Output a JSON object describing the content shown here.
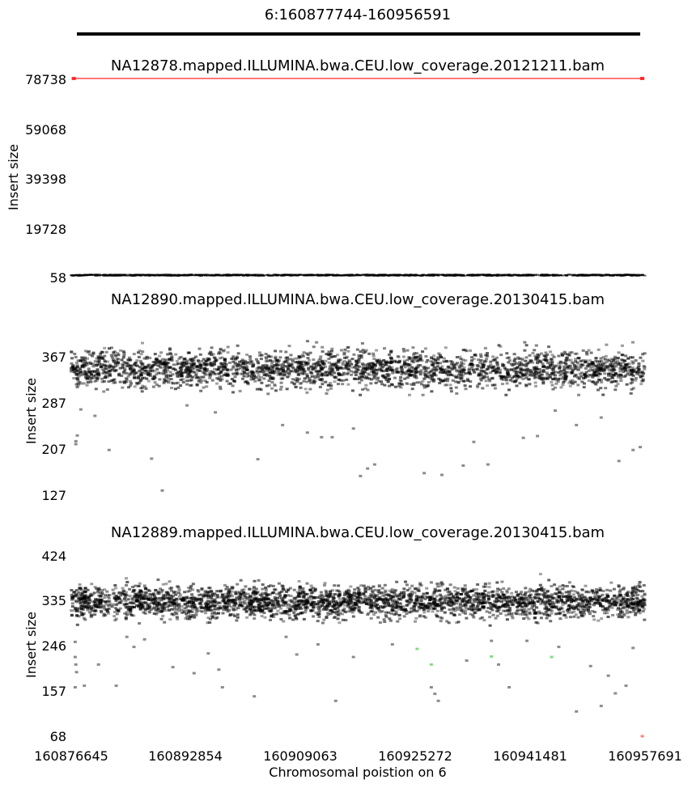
{
  "figure": {
    "region_title": "6:160877744-160956591",
    "xlabel": "Chromosomal poistion on 6",
    "xlim": [
      160876645,
      160957691
    ],
    "xticks": [
      "160876645",
      "160892854",
      "160909063",
      "160925272",
      "160941481",
      "160957691"
    ]
  },
  "chart_data": [
    {
      "type": "scatter",
      "title": "NA12878.mapped.ILLUMINA.bwa.CEU.low_coverage.20121211.bam",
      "ylabel": "Insert size",
      "ylim": [
        58,
        78738
      ],
      "yticks": [
        "78738",
        "59068",
        "39398",
        "19728",
        "58"
      ],
      "series": [
        {
          "name": "",
          "color": "#000000",
          "y_range": [
            100,
            600
          ],
          "x_range": [
            160876645,
            160957691
          ],
          "approx_count": 1200
        },
        {
          "name": "",
          "color": "#ff0000",
          "y": 78738,
          "x_range": [
            160877000,
            160957300
          ]
        }
      ]
    },
    {
      "type": "scatter",
      "title": "NA12890.mapped.ILLUMINA.bwa.CEU.low_coverage.20130415.bam",
      "ylabel": "Insert size",
      "ylim": [
        127,
        447
      ],
      "yticks": [
        "367",
        "287",
        "207",
        "127"
      ],
      "series": [
        {
          "name": "",
          "color": "#000000",
          "y_mean": 345,
          "y_spread": 25,
          "y_range": [
            300,
            440
          ],
          "approx_count": 2600
        },
        {
          "name": "",
          "color": "#000000",
          "outliers": [
            [
              160877300,
              220
            ],
            [
              160877300,
              215
            ],
            [
              160877500,
              230
            ],
            [
              160878000,
              275
            ],
            [
              160880000,
              264
            ],
            [
              160882000,
              205
            ],
            [
              160888000,
              190
            ],
            [
              160889500,
              135
            ],
            [
              160893000,
              282
            ],
            [
              160897000,
              270
            ],
            [
              160903000,
              189
            ],
            [
              160906500,
              248
            ],
            [
              160910000,
              235
            ],
            [
              160912000,
              227
            ],
            [
              160913500,
              227
            ],
            [
              160916500,
              242
            ],
            [
              160917500,
              160
            ],
            [
              160918500,
              173
            ],
            [
              160919500,
              180
            ],
            [
              160926500,
              165
            ],
            [
              160929000,
              162
            ],
            [
              160932000,
              178
            ],
            [
              160933500,
              219
            ],
            [
              160935500,
              180
            ],
            [
              160940500,
              226
            ],
            [
              160942500,
              229
            ],
            [
              160945000,
              273
            ],
            [
              160948000,
              248
            ],
            [
              160951500,
              261
            ],
            [
              160954000,
              186
            ],
            [
              160956000,
              205
            ],
            [
              160957000,
              210
            ]
          ]
        }
      ]
    },
    {
      "type": "scatter",
      "title": "NA12889.mapped.ILLUMINA.bwa.CEU.low_coverage.20130415.bam",
      "ylabel": "Insert size",
      "ylim": [
        68,
        424
      ],
      "yticks": [
        "424",
        "335",
        "246",
        "157",
        "68"
      ],
      "series": [
        {
          "name": "",
          "color": "#000000",
          "y_mean": 335,
          "y_spread": 25,
          "y_range": [
            275,
            424
          ],
          "approx_count": 3000
        },
        {
          "name": "",
          "color": "#000000",
          "outliers": [
            [
              160877200,
              255
            ],
            [
              160877200,
              225
            ],
            [
              160877300,
              210
            ],
            [
              160877400,
              195
            ],
            [
              160877200,
              165
            ],
            [
              160878500,
              168
            ],
            [
              160880500,
              210
            ],
            [
              160883000,
              168
            ],
            [
              160884500,
              265
            ],
            [
              160885500,
              245
            ],
            [
              160887000,
              260
            ],
            [
              160891000,
              205
            ],
            [
              160894000,
              193
            ],
            [
              160896000,
              232
            ],
            [
              160897500,
              200
            ],
            [
              160898000,
              165
            ],
            [
              160902500,
              147
            ],
            [
              160907000,
              265
            ],
            [
              160908500,
              230
            ],
            [
              160911500,
              250
            ],
            [
              160914000,
              138
            ],
            [
              160916500,
              225
            ],
            [
              160922000,
              250
            ],
            [
              160927500,
              165
            ],
            [
              160928000,
              152
            ],
            [
              160928500,
              138
            ],
            [
              160932500,
              218
            ],
            [
              160936000,
              257
            ],
            [
              160937000,
              210
            ],
            [
              160938500,
              165
            ],
            [
              160941000,
              257
            ],
            [
              160945500,
              245
            ],
            [
              160948000,
              117
            ],
            [
              160950000,
              207
            ],
            [
              160951500,
              128
            ],
            [
              160952500,
              188
            ],
            [
              160953500,
              153
            ],
            [
              160955000,
              168
            ],
            [
              160956000,
              243
            ]
          ]
        },
        {
          "name": "",
          "color": "#00c000",
          "points": [
            [
              160925500,
              241
            ],
            [
              160936000,
              226
            ],
            [
              160944500,
              225
            ],
            [
              160927500,
              210
            ]
          ]
        },
        {
          "name": "",
          "color": "#ff0000",
          "points": [
            [
              160957300,
              68
            ]
          ]
        }
      ]
    }
  ]
}
